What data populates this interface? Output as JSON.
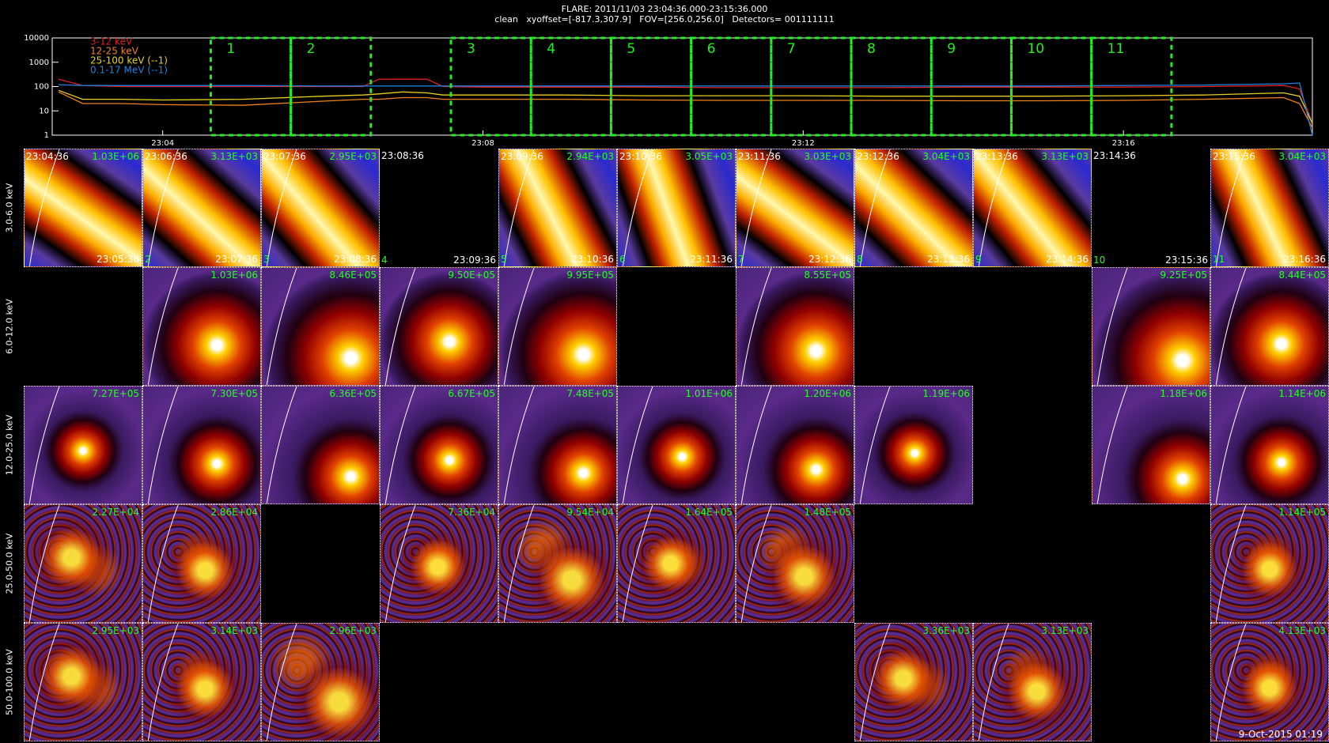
{
  "header": {
    "title": "FLARE: 2011/11/03 23:04:36.000-23:15:36.000",
    "subtitle": "clean   xyoffset=[-817.3,307.9]   FOV=[256.0,256.0]   Detectors= 001111111"
  },
  "chart_data": {
    "type": "line",
    "x": [
      2.7,
      3,
      3.5,
      4,
      5,
      6,
      6.5,
      6.7,
      7,
      7.3,
      7.5,
      8,
      9,
      10,
      11,
      12,
      13,
      14,
      15,
      16,
      17,
      18,
      18.2,
      18.36
    ],
    "xlim": [
      2.62,
      18.36
    ],
    "xticks": [
      {
        "value": 4,
        "label": "23:04"
      },
      {
        "value": 8,
        "label": "23:08"
      },
      {
        "value": 12,
        "label": "23:12"
      },
      {
        "value": 16,
        "label": "23:16"
      }
    ],
    "ylim": [
      1,
      10000
    ],
    "yticks": [
      1,
      10,
      100,
      1000,
      10000
    ],
    "log_scale_y": true,
    "legend": "top-left",
    "series": [
      {
        "name": "3-12 keV",
        "color": "#e02020",
        "values": [
          200,
          110,
          100,
          100,
          100,
          100,
          100,
          200,
          200,
          200,
          100,
          95,
          95,
          95,
          90,
          90,
          90,
          95,
          95,
          95,
          100,
          110,
          80,
          3
        ]
      },
      {
        "name": "12-25 keV",
        "color": "#f08020",
        "values": [
          60,
          20,
          20,
          18,
          17,
          25,
          30,
          30,
          35,
          35,
          30,
          30,
          30,
          28,
          27,
          27,
          27,
          26,
          26,
          27,
          30,
          35,
          20,
          2
        ]
      },
      {
        "name": "25-100 keV (--1)",
        "color": "#e8d020",
        "values": [
          70,
          30,
          30,
          28,
          30,
          40,
          45,
          50,
          60,
          55,
          45,
          45,
          45,
          42,
          42,
          42,
          40,
          40,
          40,
          42,
          45,
          55,
          40,
          3
        ]
      },
      {
        "name": "0.1-17 MeV (--1)",
        "color": "#2080e0",
        "values": [
          120,
          110,
          110,
          110,
          110,
          105,
          105,
          105,
          105,
          105,
          105,
          105,
          105,
          105,
          105,
          105,
          105,
          105,
          105,
          110,
          115,
          130,
          140,
          1
        ]
      }
    ],
    "intervals": [
      {
        "label": "1",
        "start": 4.6,
        "end": 5.6
      },
      {
        "label": "2",
        "start": 5.6,
        "end": 6.6
      },
      {
        "label": "3",
        "start": 7.6,
        "end": 8.6
      },
      {
        "label": "4",
        "start": 8.6,
        "end": 9.6
      },
      {
        "label": "5",
        "start": 9.6,
        "end": 10.6
      },
      {
        "label": "6",
        "start": 10.6,
        "end": 11.6
      },
      {
        "label": "7",
        "start": 11.6,
        "end": 12.6
      },
      {
        "label": "8",
        "start": 12.6,
        "end": 13.6
      },
      {
        "label": "9",
        "start": 13.6,
        "end": 14.6
      },
      {
        "label": "10",
        "start": 14.6,
        "end": 15.6
      },
      {
        "label": "11",
        "start": 15.6,
        "end": 16.6
      }
    ]
  },
  "rows": [
    {
      "label": "3.0-6.0 keV",
      "panels": [
        {
          "start": "23:04:36",
          "peak": "1.03E+06",
          "end": "23:05:36"
        },
        {
          "start": "23:06:36",
          "peak": "3.13E+03",
          "end": "23:07:36",
          "number": "2"
        },
        {
          "start": "23:07:36",
          "peak": "2.95E+03",
          "end": "23:08:36",
          "number": "3"
        },
        {
          "start": "23:08:36",
          "end": "23:09:36",
          "number": "4"
        },
        {
          "start": "23:09:36",
          "peak": "2.94E+03",
          "end": "23:10:36",
          "number": "5"
        },
        {
          "start": "23:10:36",
          "peak": "3.05E+03",
          "end": "23:11:36",
          "number": "6"
        },
        {
          "start": "23:11:36",
          "peak": "3.03E+03",
          "end": "23:12:36",
          "number": "7"
        },
        {
          "start": "23:12:36",
          "peak": "3.04E+03",
          "end": "23:13:36",
          "number": "8"
        },
        {
          "start": "23:13:36",
          "peak": "3.13E+03",
          "end": "23:14:36",
          "number": "9"
        },
        {
          "start": "23:14:36",
          "end": "23:15:36",
          "number": "10"
        },
        {
          "start": "23:15:36",
          "peak": "3.04E+03",
          "end": "23:16:36",
          "number": "11"
        }
      ]
    },
    {
      "label": "6.0-12.0 keV",
      "panels": [
        null,
        {
          "peak": "1.03E+06"
        },
        {
          "peak": "8.46E+05"
        },
        {
          "peak": "9.50E+05"
        },
        {
          "peak": "9.95E+05"
        },
        null,
        {
          "peak": "8.55E+05"
        },
        null,
        null,
        {
          "peak": "9.25E+05"
        },
        {
          "peak": "8.44E+05"
        }
      ]
    },
    {
      "label": "12.0-25.0 keV",
      "panels": [
        {
          "peak": "7.27E+05"
        },
        {
          "peak": "7.30E+05"
        },
        {
          "peak": "6.36E+05"
        },
        {
          "peak": "6.67E+05"
        },
        {
          "peak": "7.48E+05"
        },
        {
          "peak": "1.01E+06"
        },
        {
          "peak": "1.20E+06"
        },
        {
          "peak": "1.19E+06"
        },
        null,
        {
          "peak": "1.18E+06"
        },
        {
          "peak": "1.14E+06"
        }
      ]
    },
    {
      "label": "25.0-50.0 keV",
      "panels": [
        {
          "peak": "2.27E+04"
        },
        {
          "peak": "2.86E+04"
        },
        null,
        {
          "peak": "7.36E+04"
        },
        {
          "peak": "9.54E+04"
        },
        {
          "peak": "1.64E+05"
        },
        {
          "peak": "1.48E+05"
        },
        null,
        null,
        null,
        {
          "peak": "1.14E+05"
        }
      ]
    },
    {
      "label": "50.0-100.0 keV",
      "panels": [
        {
          "peak": "2.95E+03"
        },
        {
          "peak": "3.14E+03"
        },
        {
          "peak": "2.96E+03"
        },
        null,
        null,
        null,
        null,
        {
          "peak": "3.36E+03"
        },
        {
          "peak": "3.13E+03"
        },
        null,
        {
          "peak": "4.13E+03"
        }
      ]
    }
  ],
  "footer": "9-Oct-2015 01:19"
}
